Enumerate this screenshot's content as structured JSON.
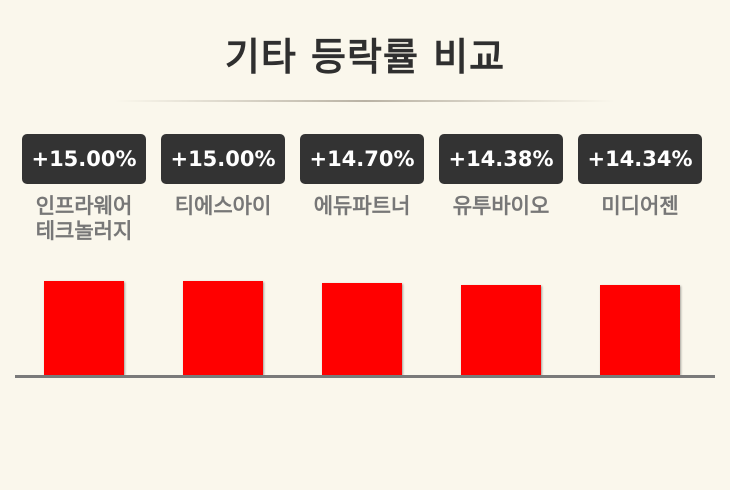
{
  "chart_data": {
    "type": "bar",
    "title": "기타 등락률 비교",
    "categories": [
      "인프라웨어 테크놀러지",
      "티에스아이",
      "에듀파트너",
      "유투바이오",
      "미디어젠"
    ],
    "value_labels": [
      "+15.00%",
      "+15.00%",
      "+14.70%",
      "+14.38%",
      "+14.34%"
    ],
    "values": [
      15.0,
      15.0,
      14.7,
      14.38,
      14.34
    ],
    "ylim": [
      0,
      18
    ],
    "colors": {
      "bar": "#ff0000",
      "badge": "#333333",
      "axis": "#7a7a7a"
    },
    "grid": false,
    "legend": "none"
  }
}
